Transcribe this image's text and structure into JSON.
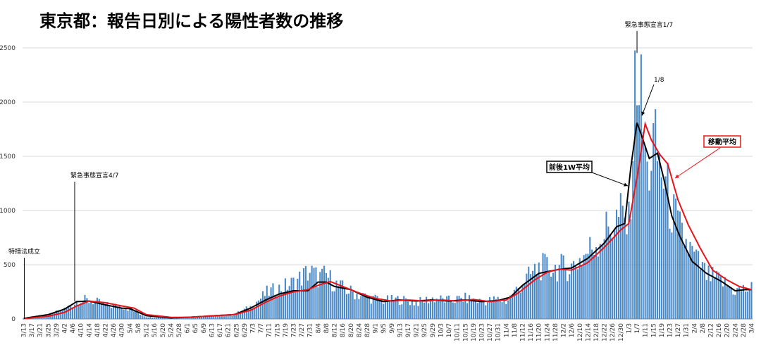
{
  "chart_data": {
    "type": "bar",
    "title": "東京都：報告日別による陽性者数の推移",
    "ylim": [
      0,
      2500
    ],
    "y_ticks": [
      0,
      500,
      1000,
      1500,
      2000,
      2500
    ],
    "start_date": "2020-03-13",
    "end_date": "2021-03-04",
    "x_tick_labels": [
      "3/13",
      "3/17",
      "3/21",
      "3/25",
      "3/29",
      "4/2",
      "4/6",
      "4/10",
      "4/14",
      "4/18",
      "4/22",
      "4/26",
      "4/30",
      "5/4",
      "5/8",
      "5/12",
      "5/16",
      "5/20",
      "5/24",
      "5/28",
      "6/1",
      "6/5",
      "6/9",
      "6/13",
      "6/17",
      "6/21",
      "6/25",
      "6/29",
      "7/3",
      "7/7",
      "7/11",
      "7/15",
      "7/19",
      "7/23",
      "7/27",
      "7/31",
      "8/4",
      "8/8",
      "8/12",
      "8/16",
      "8/20",
      "8/24",
      "8/28",
      "9/1",
      "9/5",
      "9/9",
      "9/13",
      "9/17",
      "9/21",
      "9/25",
      "9/29",
      "10/3",
      "10/7",
      "10/11",
      "10/15",
      "10/19",
      "10/23",
      "10/27",
      "10/31",
      "11/4",
      "11/8",
      "11/12",
      "11/16",
      "11/20",
      "11/24",
      "11/28",
      "12/2",
      "12/6",
      "12/10",
      "12/14",
      "12/18",
      "12/22",
      "12/26",
      "12/30",
      "1/3",
      "1/7",
      "1/11",
      "1/15",
      "1/19",
      "1/23",
      "1/27",
      "1/31",
      "2/4",
      "2/8",
      "2/12",
      "2/16",
      "2/20",
      "2/24",
      "2/28",
      "3/4"
    ],
    "daily_anchor_values": [
      [
        "3/13",
        5
      ],
      [
        "3/25",
        35
      ],
      [
        "4/2",
        90
      ],
      [
        "4/10",
        180
      ],
      [
        "4/17",
        160
      ],
      [
        "4/24",
        120
      ],
      [
        "4/30",
        120
      ],
      [
        "5/4",
        90
      ],
      [
        "5/12",
        20
      ],
      [
        "5/24",
        5
      ],
      [
        "6/1",
        10
      ],
      [
        "6/24",
        40
      ],
      [
        "7/2",
        110
      ],
      [
        "7/10",
        240
      ],
      [
        "7/16",
        280
      ],
      [
        "7/23",
        330
      ],
      [
        "7/31",
        440
      ],
      [
        "8/4",
        380
      ],
      [
        "8/8",
        400
      ],
      [
        "8/14",
        300
      ],
      [
        "8/20",
        250
      ],
      [
        "8/28",
        200
      ],
      [
        "9/5",
        170
      ],
      [
        "9/13",
        180
      ],
      [
        "9/21",
        150
      ],
      [
        "9/29",
        190
      ],
      [
        "10/7",
        170
      ],
      [
        "10/15",
        190
      ],
      [
        "10/23",
        160
      ],
      [
        "10/31",
        180
      ],
      [
        "11/4",
        160
      ],
      [
        "11/12",
        330
      ],
      [
        "11/20",
        480
      ],
      [
        "11/28",
        470
      ],
      [
        "12/6",
        480
      ],
      [
        "12/14",
        620
      ],
      [
        "12/22",
        800
      ],
      [
        "12/30",
        950
      ],
      [
        "1/3",
        850
      ],
      [
        "1/7",
        2440
      ],
      [
        "1/9",
        2000
      ],
      [
        "1/12",
        1300
      ],
      [
        "1/15",
        1600
      ],
      [
        "1/17",
        1500
      ],
      [
        "1/20",
        1300
      ],
      [
        "1/24",
        1000
      ],
      [
        "1/28",
        800
      ],
      [
        "2/3",
        600
      ],
      [
        "2/10",
        400
      ],
      [
        "2/17",
        350
      ],
      [
        "2/24",
        260
      ],
      [
        "3/4",
        280
      ]
    ],
    "series": [
      {
        "name": "前後1W平均",
        "color": "#000000",
        "points": [
          [
            "3/13",
            5
          ],
          [
            "3/25",
            40
          ],
          [
            "4/2",
            90
          ],
          [
            "4/8",
            160
          ],
          [
            "4/14",
            165
          ],
          [
            "4/22",
            130
          ],
          [
            "4/30",
            100
          ],
          [
            "5/4",
            95
          ],
          [
            "5/12",
            30
          ],
          [
            "5/24",
            10
          ],
          [
            "6/1",
            15
          ],
          [
            "6/24",
            40
          ],
          [
            "7/2",
            100
          ],
          [
            "7/10",
            180
          ],
          [
            "7/16",
            230
          ],
          [
            "7/23",
            260
          ],
          [
            "7/30",
            260
          ],
          [
            "8/4",
            340
          ],
          [
            "8/8",
            340
          ],
          [
            "8/12",
            300
          ],
          [
            "8/20",
            270
          ],
          [
            "8/28",
            200
          ],
          [
            "9/5",
            160
          ],
          [
            "9/13",
            175
          ],
          [
            "9/21",
            165
          ],
          [
            "9/29",
            175
          ],
          [
            "10/7",
            165
          ],
          [
            "10/15",
            175
          ],
          [
            "10/23",
            160
          ],
          [
            "10/31",
            170
          ],
          [
            "11/6",
            200
          ],
          [
            "11/12",
            310
          ],
          [
            "11/20",
            420
          ],
          [
            "11/25",
            440
          ],
          [
            "12/1",
            460
          ],
          [
            "12/6",
            470
          ],
          [
            "12/14",
            560
          ],
          [
            "12/22",
            700
          ],
          [
            "12/28",
            850
          ],
          [
            "1/1",
            880
          ],
          [
            "1/4",
            1400
          ],
          [
            "1/7",
            1810
          ],
          [
            "1/10",
            1650
          ],
          [
            "1/13",
            1480
          ],
          [
            "1/17",
            1530
          ],
          [
            "1/20",
            1300
          ],
          [
            "1/24",
            950
          ],
          [
            "1/28",
            760
          ],
          [
            "2/3",
            530
          ],
          [
            "2/10",
            420
          ],
          [
            "2/17",
            350
          ],
          [
            "2/24",
            260
          ],
          [
            "3/1",
            270
          ],
          [
            "3/4",
            270
          ]
        ]
      },
      {
        "name": "移動平均",
        "color": "#e8141b",
        "points": [
          [
            "3/13",
            3
          ],
          [
            "3/25",
            25
          ],
          [
            "4/2",
            60
          ],
          [
            "4/8",
            120
          ],
          [
            "4/14",
            165
          ],
          [
            "4/22",
            150
          ],
          [
            "4/30",
            120
          ],
          [
            "5/6",
            100
          ],
          [
            "5/12",
            40
          ],
          [
            "5/24",
            15
          ],
          [
            "6/1",
            15
          ],
          [
            "6/24",
            40
          ],
          [
            "7/2",
            80
          ],
          [
            "7/10",
            160
          ],
          [
            "7/16",
            210
          ],
          [
            "7/23",
            250
          ],
          [
            "7/30",
            270
          ],
          [
            "8/4",
            310
          ],
          [
            "8/10",
            345
          ],
          [
            "8/16",
            300
          ],
          [
            "8/24",
            240
          ],
          [
            "9/1",
            190
          ],
          [
            "9/9",
            165
          ],
          [
            "9/17",
            175
          ],
          [
            "9/25",
            165
          ],
          [
            "10/3",
            175
          ],
          [
            "10/11",
            165
          ],
          [
            "10/19",
            180
          ],
          [
            "10/27",
            160
          ],
          [
            "11/4",
            175
          ],
          [
            "11/10",
            240
          ],
          [
            "11/18",
            360
          ],
          [
            "11/24",
            430
          ],
          [
            "11/30",
            460
          ],
          [
            "12/6",
            450
          ],
          [
            "12/14",
            520
          ],
          [
            "12/22",
            660
          ],
          [
            "12/30",
            820
          ],
          [
            "1/3",
            880
          ],
          [
            "1/7",
            1300
          ],
          [
            "1/11",
            1800
          ],
          [
            "1/14",
            1650
          ],
          [
            "1/18",
            1520
          ],
          [
            "1/22",
            1430
          ],
          [
            "1/27",
            1100
          ],
          [
            "2/1",
            870
          ],
          [
            "2/7",
            650
          ],
          [
            "2/13",
            450
          ],
          [
            "2/20",
            360
          ],
          [
            "2/26",
            300
          ],
          [
            "3/4",
            270
          ]
        ]
      }
    ],
    "annotations": [
      {
        "text": "緊急事態宣言1/7",
        "date": "1/7",
        "value": 2440
      },
      {
        "text": "1/8",
        "date": "1/8",
        "value": 1810
      },
      {
        "text": "緊急事態宣言4/7",
        "date": "4/7",
        "value": 160
      },
      {
        "text": "特措法成立",
        "date": "3/13",
        "value": 5
      }
    ],
    "legend_boxes": [
      {
        "text": "前後1W平均",
        "color": "#000000",
        "position": "center-right"
      },
      {
        "text": "移動平均",
        "color": "#e8141b",
        "position": "top-right"
      }
    ],
    "colors": {
      "bar": "#4a89c8",
      "line_1w": "#000000",
      "line_ma": "#e8141b",
      "grid": "#d9d9d9"
    },
    "grid": true
  }
}
